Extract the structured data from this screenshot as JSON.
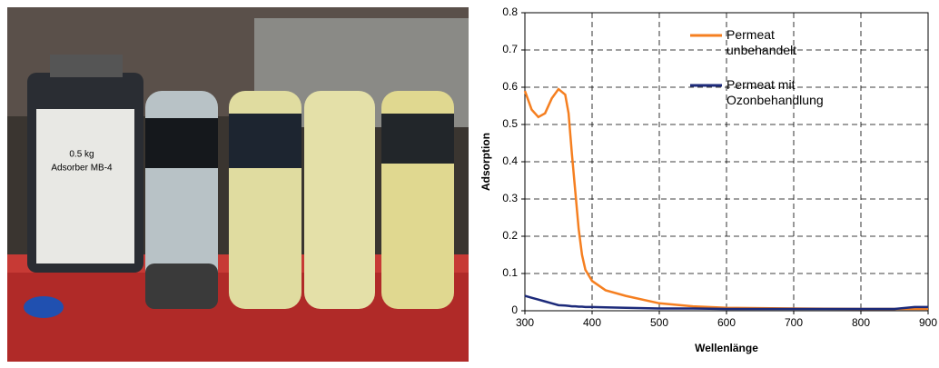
{
  "chart_data": {
    "type": "line",
    "xlabel": "Wellenlänge",
    "ylabel": "Adsorption",
    "x": [
      300,
      310,
      320,
      330,
      340,
      350,
      360,
      365,
      370,
      375,
      380,
      385,
      390,
      400,
      420,
      450,
      500,
      550,
      600,
      700,
      800,
      850,
      880,
      900
    ],
    "series": [
      {
        "name": "Permeat unbehandelt",
        "color": "#f57f20",
        "values": [
          0.59,
          0.54,
          0.52,
          0.53,
          0.57,
          0.595,
          0.58,
          0.53,
          0.42,
          0.32,
          0.22,
          0.15,
          0.11,
          0.08,
          0.055,
          0.04,
          0.02,
          0.012,
          0.008,
          0.006,
          0.005,
          0.005,
          0.005,
          0.005
        ]
      },
      {
        "name": "Permeat mit Ozonbehandlung",
        "color": "#1c2a7a",
        "values": [
          0.04,
          0.035,
          0.03,
          0.025,
          0.02,
          0.015,
          0.014,
          0.013,
          0.012,
          0.012,
          0.011,
          0.011,
          0.01,
          0.01,
          0.009,
          0.008,
          0.006,
          0.006,
          0.005,
          0.005,
          0.005,
          0.005,
          0.01,
          0.01
        ]
      }
    ],
    "xlim": [
      300,
      900
    ],
    "xticks": [
      300,
      400,
      500,
      600,
      700,
      800,
      900
    ],
    "ylim": [
      0,
      0.8
    ],
    "yticks": [
      0,
      0.1,
      0.2,
      0.3,
      0.4,
      0.5,
      0.6,
      0.7,
      0.8
    ],
    "grid": true
  }
}
